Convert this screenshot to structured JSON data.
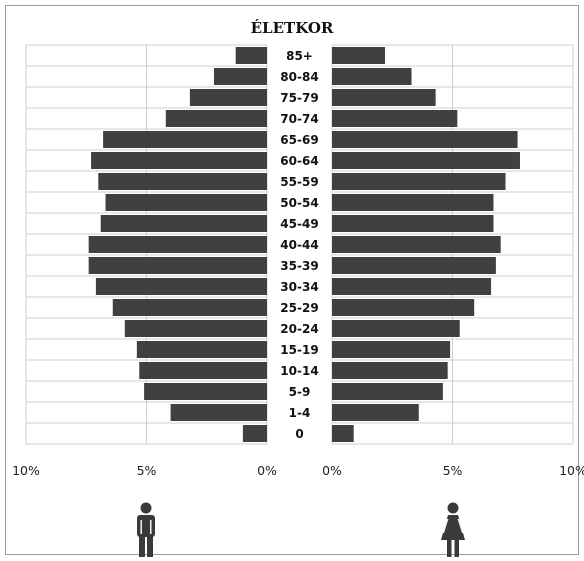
{
  "chart_data": {
    "type": "bar",
    "orientation": "horizontal",
    "title": "ÉLETKOR",
    "categories": [
      "85+",
      "80-84",
      "75-79",
      "70-74",
      "65-69",
      "60-64",
      "55-59",
      "50-54",
      "45-49",
      "40-44",
      "35-39",
      "30-34",
      "25-29",
      "20-24",
      "15-19",
      "10-14",
      "5-9",
      "1-4",
      "0"
    ],
    "series": [
      {
        "side": "left",
        "icon": "male-icon",
        "values": [
          1.3,
          2.2,
          3.2,
          4.2,
          6.8,
          7.3,
          7.0,
          6.7,
          6.9,
          7.4,
          7.4,
          7.1,
          6.4,
          5.9,
          5.4,
          5.3,
          5.1,
          4.0,
          1.0
        ]
      },
      {
        "side": "right",
        "icon": "female-icon",
        "values": [
          2.2,
          3.3,
          4.3,
          5.2,
          7.7,
          7.8,
          7.2,
          6.7,
          6.7,
          7.0,
          6.8,
          6.6,
          5.9,
          5.3,
          4.9,
          4.8,
          4.6,
          3.6,
          0.9
        ]
      }
    ],
    "left_axis": {
      "ticks": [
        "10%",
        "5%",
        "0%"
      ],
      "xlim": [
        10,
        0
      ],
      "tick_values": [
        10,
        5,
        0
      ]
    },
    "right_axis": {
      "ticks": [
        "0%",
        "5%",
        "10%"
      ],
      "xlim": [
        0,
        10
      ],
      "tick_values": [
        0,
        5,
        10
      ]
    },
    "grid": true,
    "bar_color": "#404040"
  }
}
